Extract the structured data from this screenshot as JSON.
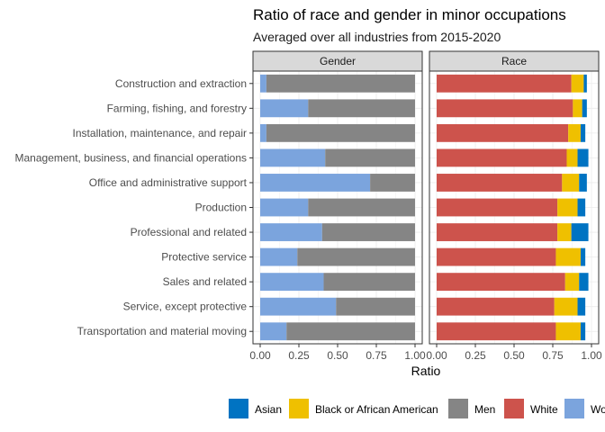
{
  "chart_data": {
    "type": "bar",
    "orientation": "horizontal",
    "stacked": true,
    "title": "Ratio of race and gender in minor occupations",
    "subtitle": "Averaged over all industries from 2015-2020",
    "xlabel": "Ratio",
    "ylabel": "",
    "xlim": [
      0,
      1
    ],
    "x_ticks": [
      "0.00",
      "0.25",
      "0.50",
      "0.75",
      "1.00"
    ],
    "grid": true,
    "legend_position": "bottom",
    "categories": [
      "Construction and extraction",
      "Farming, fishing, and forestry",
      "Installation, maintenance, and repair",
      "Management, business, and financial operations",
      "Office and administrative support",
      "Production",
      "Professional and related",
      "Protective service",
      "Sales and related",
      "Service, except protective",
      "Transportation and material moving"
    ],
    "panels": [
      {
        "label": "Gender",
        "series": [
          {
            "name": "Women",
            "color": "#7BA4DD",
            "values": [
              0.04,
              0.31,
              0.04,
              0.42,
              0.71,
              0.31,
              0.4,
              0.24,
              0.41,
              0.49,
              0.17
            ]
          },
          {
            "name": "Men",
            "color": "#858585",
            "values": [
              0.96,
              0.69,
              0.96,
              0.58,
              0.29,
              0.69,
              0.6,
              0.76,
              0.59,
              0.51,
              0.83
            ]
          }
        ]
      },
      {
        "label": "Race",
        "series": [
          {
            "name": "White",
            "color": "#CD534C",
            "values": [
              0.87,
              0.88,
              0.85,
              0.84,
              0.81,
              0.78,
              0.78,
              0.77,
              0.83,
              0.76,
              0.77
            ]
          },
          {
            "name": "Black or African American",
            "color": "#EFC000",
            "values": [
              0.08,
              0.06,
              0.08,
              0.07,
              0.11,
              0.13,
              0.09,
              0.16,
              0.09,
              0.15,
              0.16
            ]
          },
          {
            "name": "Asian",
            "color": "#0073C2",
            "values": [
              0.02,
              0.03,
              0.03,
              0.07,
              0.05,
              0.05,
              0.11,
              0.03,
              0.06,
              0.05,
              0.03
            ]
          }
        ]
      }
    ],
    "legend": [
      {
        "name": "Asian",
        "color": "#0073C2"
      },
      {
        "name": "Black or African American",
        "color": "#EFC000"
      },
      {
        "name": "Men",
        "color": "#858585"
      },
      {
        "name": "White",
        "color": "#CD534C"
      },
      {
        "name": "Women",
        "color": "#7BA4DD"
      }
    ]
  }
}
